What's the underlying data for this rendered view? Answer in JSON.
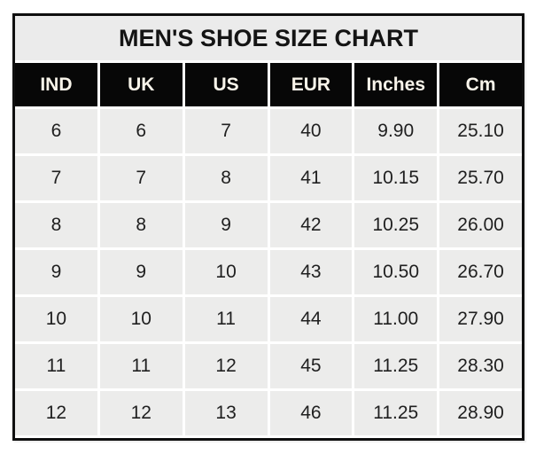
{
  "title": "MEN'S SHOE SIZE CHART",
  "table": {
    "columns": [
      "IND",
      "UK",
      "US",
      "EUR",
      "Inches",
      "Cm"
    ],
    "rows": [
      [
        "6",
        "6",
        "7",
        "40",
        "9.90",
        "25.10"
      ],
      [
        "7",
        "7",
        "8",
        "41",
        "10.15",
        "25.70"
      ],
      [
        "8",
        "8",
        "9",
        "42",
        "10.25",
        "26.00"
      ],
      [
        "9",
        "9",
        "10",
        "43",
        "10.50",
        "26.70"
      ],
      [
        "10",
        "10",
        "11",
        "44",
        "11.00",
        "27.90"
      ],
      [
        "11",
        "11",
        "12",
        "45",
        "11.25",
        "28.30"
      ],
      [
        "12",
        "12",
        "13",
        "46",
        "11.25",
        "28.90"
      ]
    ]
  },
  "chart_data": {
    "type": "table",
    "title": "MEN'S SHOE SIZE CHART",
    "columns": [
      "IND",
      "UK",
      "US",
      "EUR",
      "Inches",
      "Cm"
    ],
    "rows": [
      [
        6,
        6,
        7,
        40,
        9.9,
        25.1
      ],
      [
        7,
        7,
        8,
        41,
        10.15,
        25.7
      ],
      [
        8,
        8,
        9,
        42,
        10.25,
        26.0
      ],
      [
        9,
        9,
        10,
        43,
        10.5,
        26.7
      ],
      [
        10,
        10,
        11,
        44,
        11.0,
        27.9
      ],
      [
        11,
        11,
        12,
        45,
        11.25,
        28.3
      ],
      [
        12,
        12,
        13,
        46,
        11.25,
        28.9
      ]
    ]
  },
  "colors": {
    "page_bg": "#ffffff",
    "border": "#0f0f0f",
    "title_band_bg": "#ebebeb",
    "header_bg": "#070707",
    "header_text": "#f8f4ea",
    "cell_bg": "#ececeb",
    "cell_text": "#202020"
  }
}
